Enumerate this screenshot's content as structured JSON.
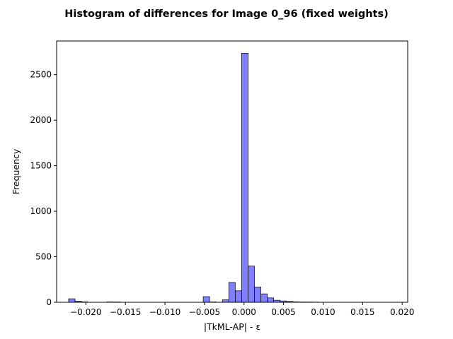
{
  "chart_data": {
    "type": "bar",
    "title": "Histogram of differences for Image 0_96 (fixed weights)",
    "xlabel": "|TkML-AP| - ε",
    "ylabel": "Frequency",
    "xlim": [
      -0.0237,
      0.0207
    ],
    "ylim": [
      0,
      2870
    ],
    "grid": false,
    "bar_color": "#0000ff",
    "bar_alpha": 0.5,
    "edge_color": "#1a1a1a",
    "bin_width": 0.00081,
    "x_ticks": [
      -0.02,
      -0.015,
      -0.01,
      -0.005,
      0.0,
      0.005,
      0.01,
      0.015,
      0.02
    ],
    "x_tick_labels": [
      "−0.020",
      "−0.015",
      "−0.010",
      "−0.005",
      "0.000",
      "0.005",
      "0.010",
      "0.015",
      "0.020"
    ],
    "y_ticks": [
      0,
      500,
      1000,
      1500,
      2000,
      2500
    ],
    "y_tick_labels": [
      "0",
      "500",
      "1000",
      "1500",
      "2000",
      "2500"
    ],
    "bins": [
      {
        "x": -0.02218,
        "value": 38
      },
      {
        "x": -0.02137,
        "value": 12
      },
      {
        "x": -0.02056,
        "value": 5
      },
      {
        "x": -0.01732,
        "value": 4
      },
      {
        "x": -0.01651,
        "value": 3
      },
      {
        "x": -0.00516,
        "value": 62
      },
      {
        "x": -0.00435,
        "value": 4
      },
      {
        "x": -0.00273,
        "value": 28
      },
      {
        "x": -0.00192,
        "value": 218
      },
      {
        "x": -0.00111,
        "value": 126
      },
      {
        "x": -0.0003,
        "value": 2735
      },
      {
        "x": 0.00051,
        "value": 398
      },
      {
        "x": 0.00132,
        "value": 168
      },
      {
        "x": 0.00213,
        "value": 92
      },
      {
        "x": 0.00294,
        "value": 48
      },
      {
        "x": 0.00375,
        "value": 22
      },
      {
        "x": 0.00456,
        "value": 14
      },
      {
        "x": 0.00537,
        "value": 10
      },
      {
        "x": 0.00618,
        "value": 5
      },
      {
        "x": 0.00699,
        "value": 3
      },
      {
        "x": 0.0078,
        "value": 3
      },
      {
        "x": 0.00861,
        "value": 2
      }
    ]
  }
}
